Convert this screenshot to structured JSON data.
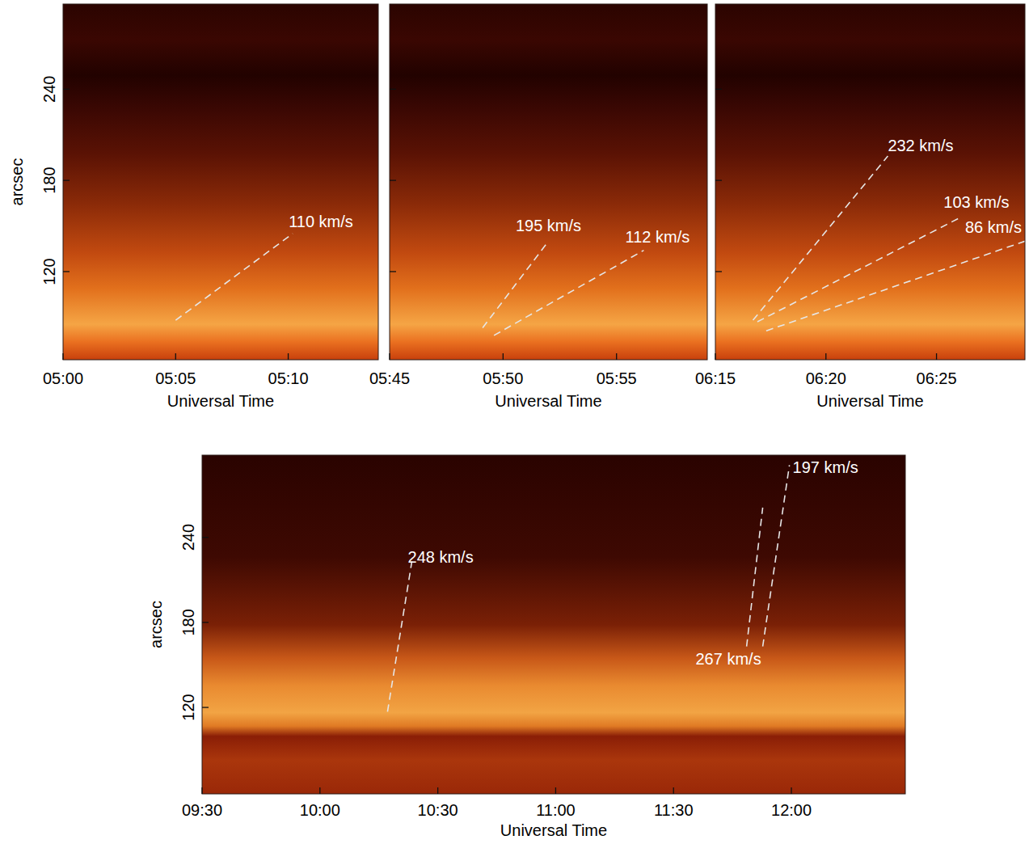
{
  "chart_data": [
    {
      "type": "line",
      "xlabel": "Universal Time",
      "ylabel": "arcsec",
      "xlim": [
        300,
        314
      ],
      "ylim": [
        62,
        296
      ],
      "xticks": [
        {
          "value": 300,
          "label": "05:00"
        },
        {
          "value": 305,
          "label": "05:05"
        },
        {
          "value": 310,
          "label": "05:10"
        }
      ],
      "yticks": [
        120,
        180,
        240
      ],
      "line_style": "dashed",
      "color": "#e6e6e6",
      "series": [
        {
          "name": "110 km/s",
          "x": [
            305.0,
            310.2
          ],
          "values": [
            88,
            145
          ]
        }
      ]
    },
    {
      "type": "line",
      "xlabel": "Universal Time",
      "xlim": [
        345,
        359
      ],
      "ylim": [
        62,
        296
      ],
      "xticks": [
        {
          "value": 345,
          "label": "05:45"
        },
        {
          "value": 350,
          "label": "05:50"
        },
        {
          "value": 355,
          "label": "05:55"
        }
      ],
      "yticks": [
        120,
        180,
        240
      ],
      "tick_labels": "x",
      "line_style": "dashed",
      "color": "#e6e6e6",
      "series": [
        {
          "name": "195 km/s",
          "x": [
            349.1,
            352.0
          ],
          "values": [
            83,
            140
          ]
        },
        {
          "name": "112 km/s",
          "x": [
            349.6,
            356.2
          ],
          "values": [
            78,
            134
          ]
        }
      ]
    },
    {
      "type": "line",
      "xlabel": "Universal Time",
      "xlim": [
        375,
        389
      ],
      "ylim": [
        62,
        296
      ],
      "xticks": [
        {
          "value": 375,
          "label": "06:15"
        },
        {
          "value": 380,
          "label": "06:20"
        },
        {
          "value": 385,
          "label": "06:25"
        }
      ],
      "yticks": [
        120,
        180,
        240
      ],
      "tick_labels": "x",
      "line_style": "dashed",
      "color": "#e6e6e6",
      "series": [
        {
          "name": "232 km/s",
          "x": [
            376.7,
            382.8
          ],
          "values": [
            88,
            196
          ]
        },
        {
          "name": "103 km/s",
          "x": [
            376.9,
            386.0
          ],
          "values": [
            87,
            155
          ]
        },
        {
          "name": "86 km/s",
          "x": [
            377.3,
            389.0
          ],
          "values": [
            81,
            140
          ]
        }
      ]
    },
    {
      "type": "line",
      "xlabel": "Universal Time",
      "ylabel": "arcsec",
      "xlim": [
        570,
        749
      ],
      "ylim": [
        59,
        298
      ],
      "xticks": [
        {
          "value": 570,
          "label": "09:30"
        },
        {
          "value": 600,
          "label": "10:00"
        },
        {
          "value": 630,
          "label": "10:30"
        },
        {
          "value": 660,
          "label": "11:00"
        },
        {
          "value": 690,
          "label": "11:30"
        },
        {
          "value": 720,
          "label": "12:00"
        }
      ],
      "yticks": [
        120,
        180,
        240
      ],
      "line_style": "dashed",
      "color": "#e6e6e6",
      "series": [
        {
          "name": "248 km/s",
          "x": [
            617.2,
            623.4
          ],
          "values": [
            117,
            223
          ]
        },
        {
          "name": "267 km/s",
          "x": [
            708.6,
            712.7
          ],
          "values": [
            163,
            261
          ]
        },
        {
          "name": "197 km/s",
          "x": [
            712.7,
            719.5
          ],
          "values": [
            163,
            291
          ]
        }
      ]
    }
  ]
}
